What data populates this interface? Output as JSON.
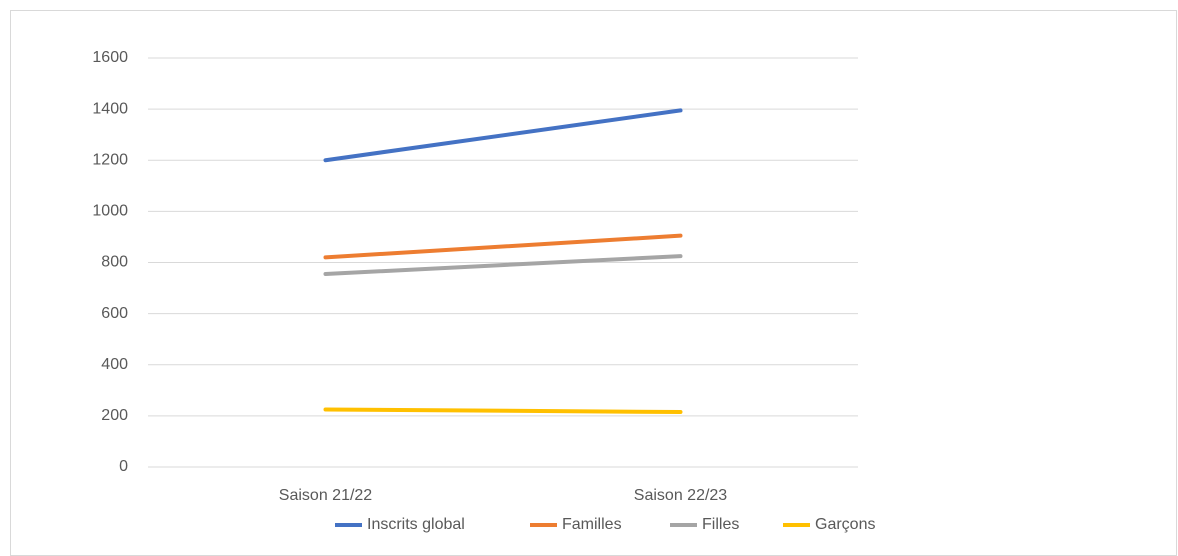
{
  "chart_data": {
    "type": "line",
    "categories": [
      "Saison 21/22",
      "Saison 22/23"
    ],
    "series": [
      {
        "name": "Inscrits global",
        "color": "#4472c4",
        "values": [
          1200,
          1395
        ]
      },
      {
        "name": "Familles",
        "color": "#ed7d31",
        "values": [
          820,
          905
        ]
      },
      {
        "name": "Filles",
        "color": "#a5a5a5",
        "values": [
          755,
          825
        ]
      },
      {
        "name": "Garçons",
        "color": "#ffc000",
        "values": [
          225,
          215
        ]
      }
    ],
    "ylim": [
      0,
      1600
    ],
    "yticks": [
      0,
      200,
      400,
      600,
      800,
      1000,
      1200,
      1400,
      1600
    ],
    "grid": true,
    "legend": "bottom"
  }
}
